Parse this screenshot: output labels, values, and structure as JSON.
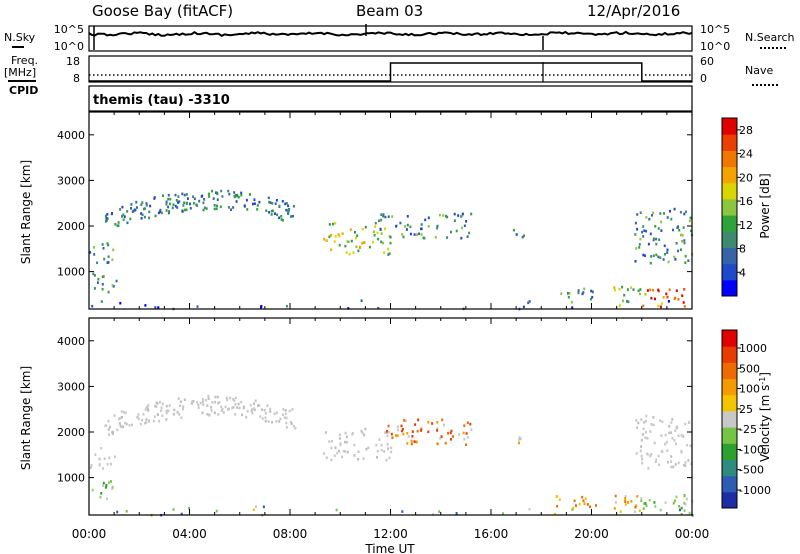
{
  "header": {
    "station": "Goose Bay (fitACF)",
    "beam": "Beam 03",
    "date": "12/Apr/2016"
  },
  "side_labels": {
    "nsky": "N.Sky",
    "nsearch": "N.Search",
    "freq": "Freq.",
    "mhz": "[MHz]",
    "nave": "Nave",
    "cpid": "CPID",
    "cpid_value": "themis (tau) -3310"
  },
  "noise_panel": {
    "left_ticks": [
      "10^5",
      "10^0"
    ],
    "right_ticks": [
      "10^5",
      "10^0"
    ]
  },
  "freq_panel": {
    "left_ticks": [
      "18",
      "8"
    ],
    "right_ticks": [
      "60",
      "0"
    ],
    "nave_level_segments": [
      {
        "start_h": 0,
        "end_h": 12,
        "nave": 0
      },
      {
        "start_h": 12,
        "end_h": 22,
        "nave": 60
      },
      {
        "start_h": 22,
        "end_h": 24,
        "nave": 0
      }
    ]
  },
  "chart_data": [
    {
      "type": "heatmap",
      "quantity": "power",
      "ylabel": "Slant Range [km]",
      "xlabel": "",
      "x_range_hours": [
        0,
        24
      ],
      "ylim": [
        180,
        4500
      ],
      "yticks": [
        1000,
        2000,
        3000,
        4000
      ],
      "ytick_labels": [
        "1000",
        "2000",
        "3000",
        "4000"
      ],
      "colorbar": {
        "label": "Power [dB]",
        "range": [
          0,
          30
        ],
        "ticks": [
          "4",
          "8",
          "12",
          "16",
          "20",
          "24",
          "28"
        ],
        "colors": [
          "#0000ff",
          "#1e49c8",
          "#3565a8",
          "#3e8a6e",
          "#2fa33a",
          "#8cc63f",
          "#d8d500",
          "#f5a300",
          "#f07700",
          "#ea4000",
          "#e00000"
        ]
      },
      "bands": [
        {
          "start_h": 0.0,
          "end_h": 1.0,
          "range_min": 1200,
          "range_max": 1700,
          "level": "mid"
        },
        {
          "start_h": 0.1,
          "end_h": 1.1,
          "range_min": 550,
          "range_max": 1000,
          "level": "mid"
        },
        {
          "start_h": 0.6,
          "end_h": 8.2,
          "range_min": 1900,
          "range_max": 2700,
          "level": "low",
          "arc": true
        },
        {
          "start_h": 9.3,
          "end_h": 12.0,
          "range_min": 1400,
          "range_max": 2100,
          "level": "high"
        },
        {
          "start_h": 11.5,
          "end_h": 15.2,
          "range_min": 1750,
          "range_max": 2300,
          "level": "mid"
        },
        {
          "start_h": 16.8,
          "end_h": 17.3,
          "range_min": 1700,
          "range_max": 2000,
          "level": "mid"
        },
        {
          "start_h": 18.5,
          "end_h": 20.2,
          "range_min": 350,
          "range_max": 650,
          "level": "mid"
        },
        {
          "start_h": 20.8,
          "end_h": 22.0,
          "range_min": 250,
          "range_max": 700,
          "level": "high"
        },
        {
          "start_h": 21.9,
          "end_h": 24.0,
          "range_min": 250,
          "range_max": 650,
          "level": "very-high"
        },
        {
          "start_h": 21.7,
          "end_h": 24.0,
          "range_min": 1200,
          "range_max": 2400,
          "level": "mid"
        },
        {
          "start_h": 0.0,
          "end_h": 24.0,
          "range_min": 180,
          "range_max": 400,
          "level": "noise"
        }
      ]
    },
    {
      "type": "heatmap",
      "quantity": "velocity",
      "ylabel": "Slant Range [km]",
      "xlabel": "Time UT",
      "x_range_hours": [
        0,
        24
      ],
      "xticks": [
        "00:00",
        "04:00",
        "08:00",
        "12:00",
        "16:00",
        "20:00",
        "00:00"
      ],
      "ylim": [
        180,
        4500
      ],
      "yticks": [
        1000,
        2000,
        3000,
        4000
      ],
      "ytick_labels": [
        "1000",
        "2000",
        "3000",
        "4000"
      ],
      "colorbar": {
        "label": "Velocity [m s",
        "label_sup": "-1",
        "label_end": "]",
        "range": [
          -1000,
          1000
        ],
        "ticks": [
          "1000",
          "500",
          "100",
          "25",
          "-25",
          "-100",
          "-500",
          "-1000"
        ],
        "colors": [
          "#1c2da5",
          "#2c5db3",
          "#2f8a7f",
          "#2da02d",
          "#74c445",
          "#c8c8c8",
          "#f5c400",
          "#f59a00",
          "#ef6a00",
          "#e83c00",
          "#e00000"
        ]
      },
      "bands": [
        {
          "start_h": 0.0,
          "end_h": 1.0,
          "range_min": 1200,
          "range_max": 1700,
          "level": "gray"
        },
        {
          "start_h": 0.1,
          "end_h": 1.1,
          "range_min": 550,
          "range_max": 1000,
          "level": "green"
        },
        {
          "start_h": 0.6,
          "end_h": 8.2,
          "range_min": 1900,
          "range_max": 2700,
          "level": "gray",
          "arc": true
        },
        {
          "start_h": 9.3,
          "end_h": 12.0,
          "range_min": 1400,
          "range_max": 2100,
          "level": "gray"
        },
        {
          "start_h": 11.5,
          "end_h": 15.2,
          "range_min": 1750,
          "range_max": 2300,
          "level": "orange"
        },
        {
          "start_h": 16.8,
          "end_h": 17.3,
          "range_min": 1700,
          "range_max": 2000,
          "level": "orange"
        },
        {
          "start_h": 18.5,
          "end_h": 20.2,
          "range_min": 350,
          "range_max": 650,
          "level": "yellow"
        },
        {
          "start_h": 20.8,
          "end_h": 22.0,
          "range_min": 250,
          "range_max": 700,
          "level": "yellow"
        },
        {
          "start_h": 21.9,
          "end_h": 24.0,
          "range_min": 250,
          "range_max": 650,
          "level": "green"
        },
        {
          "start_h": 21.7,
          "end_h": 24.0,
          "range_min": 1200,
          "range_max": 2400,
          "level": "gray"
        },
        {
          "start_h": 0.0,
          "end_h": 24.0,
          "range_min": 180,
          "range_max": 400,
          "level": "noise"
        }
      ]
    }
  ]
}
